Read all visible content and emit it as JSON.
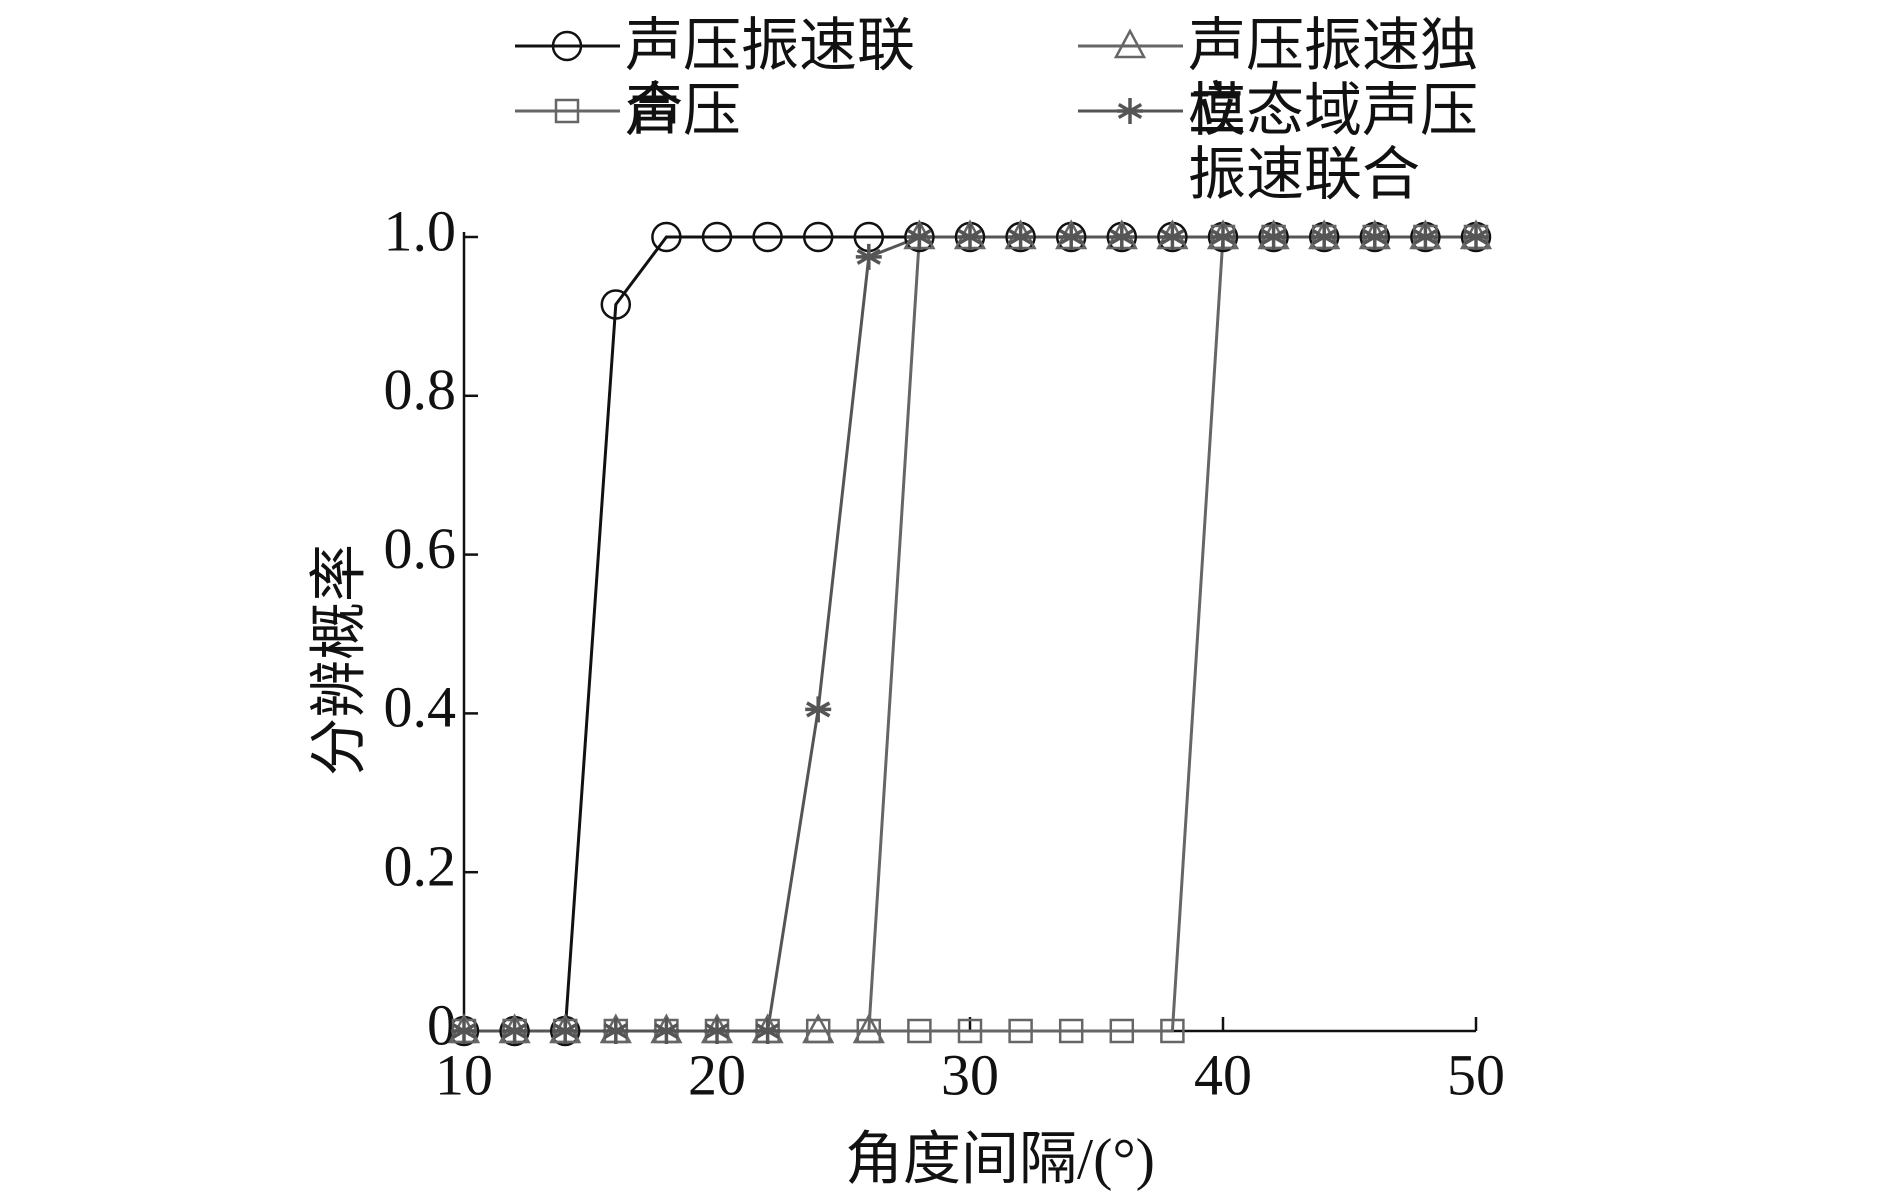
{
  "chart_data": {
    "type": "line",
    "x_label": "角度间隔/(°)",
    "y_label": "分辨概率",
    "x": [
      10,
      12,
      14,
      16,
      18,
      20,
      22,
      24,
      26,
      28,
      30,
      32,
      34,
      36,
      38,
      40,
      42,
      44,
      46,
      48,
      50
    ],
    "series": [
      {
        "name": "声压振速联合",
        "color": "#111111",
        "marker": "circle",
        "values": [
          0,
          0,
          0,
          0.915,
          1,
          1,
          1,
          1,
          1,
          1,
          1,
          1,
          1,
          1,
          1,
          1,
          1,
          1,
          1,
          1,
          1
        ]
      },
      {
        "name": "声压振速独立",
        "color": "#666666",
        "marker": "triangle",
        "values": [
          0,
          0,
          0,
          0,
          0,
          0,
          0,
          0,
          0,
          1,
          1,
          1,
          1,
          1,
          1,
          1,
          1,
          1,
          1,
          1,
          1
        ]
      },
      {
        "name": "声压",
        "color": "#666666",
        "marker": "square",
        "values": [
          0,
          0,
          0,
          0,
          0,
          0,
          0,
          0,
          0,
          0,
          0,
          0,
          0,
          0,
          0,
          1,
          1,
          1,
          1,
          1,
          1
        ]
      },
      {
        "name": "模态域声压振速联合",
        "color": "#555555",
        "marker": "star",
        "values": [
          0,
          0,
          0,
          0,
          0,
          0,
          0,
          0.405,
          0.975,
          1,
          1,
          1,
          1,
          1,
          1,
          1,
          1,
          1,
          1,
          1,
          1
        ]
      }
    ],
    "xlim": [
      10,
      50
    ],
    "xticks": [
      10,
      20,
      30,
      40,
      50
    ],
    "ylim": [
      0,
      1
    ],
    "yticks": [
      0,
      0.2,
      0.4,
      0.6,
      0.8,
      {
        "value": 1,
        "label": "1.0"
      }
    ]
  }
}
